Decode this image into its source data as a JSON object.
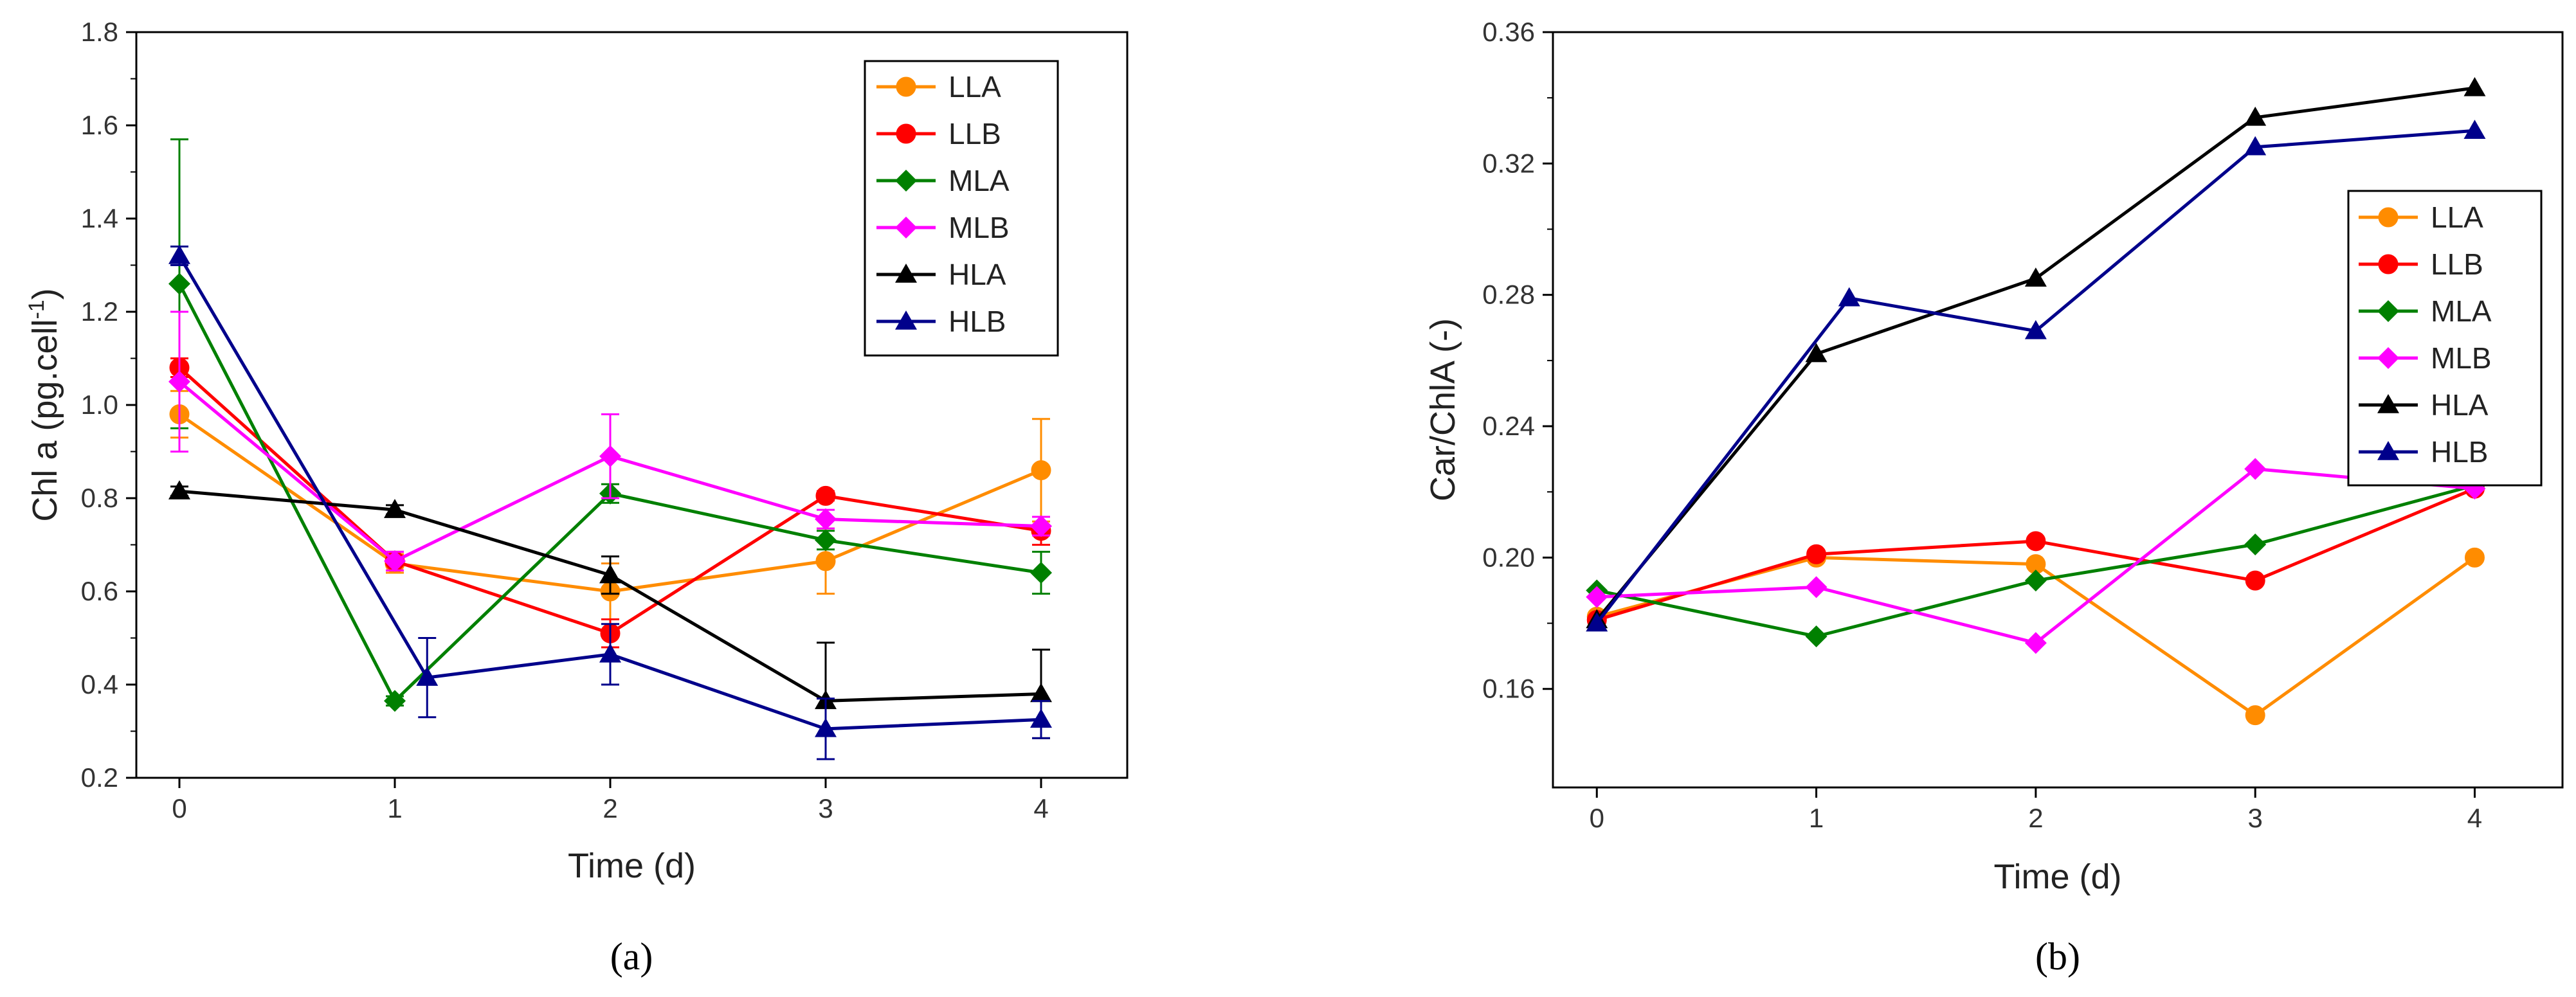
{
  "chart_data": [
    {
      "type": "line",
      "panel": "a",
      "caption": "(a)",
      "xlabel": "Time (d)",
      "ylabel": "Chl a (pg.cell",
      "ylabel_sup": "-1",
      "ylabel_close": ")",
      "xlim": [
        -0.2,
        4.4
      ],
      "ylim": [
        0.2,
        1.8
      ],
      "xticks": [
        0,
        1,
        2,
        3,
        4
      ],
      "xtick_labels": [
        "0",
        "1",
        "2",
        "3",
        "4"
      ],
      "yticks": [
        0.2,
        0.4,
        0.6,
        0.8,
        1.0,
        1.2,
        1.4,
        1.6,
        1.8
      ],
      "ytick_labels": [
        "0.2",
        "0.4",
        "0.6",
        "0.8",
        "1.0",
        "1.2",
        "1.4",
        "1.6",
        "1.8"
      ],
      "legend_position": "top-right",
      "series": [
        {
          "name": "LLA",
          "color": "#ff8c00",
          "marker": "circle",
          "x": [
            0,
            1,
            2,
            3,
            4
          ],
          "y": [
            0.98,
            0.66,
            0.6,
            0.665,
            0.86
          ],
          "err": [
            0.05,
            0.02,
            0.06,
            0.07,
            0.11
          ]
        },
        {
          "name": "LLB",
          "color": "#ff0000",
          "marker": "circle",
          "x": [
            0,
            1,
            2,
            3,
            4
          ],
          "y": [
            1.08,
            0.665,
            0.51,
            0.805,
            0.73
          ],
          "err": [
            0.02,
            0.02,
            0.03,
            0.01,
            0.03
          ]
        },
        {
          "name": "MLA",
          "color": "#008000",
          "marker": "diamond",
          "x": [
            0,
            1,
            2,
            3,
            4
          ],
          "y": [
            1.26,
            0.365,
            0.81,
            0.71,
            0.64
          ],
          "err": [
            0.31,
            0.01,
            0.02,
            0.02,
            0.045
          ]
        },
        {
          "name": "MLB",
          "color": "#ff00ff",
          "marker": "diamond",
          "x": [
            0,
            1,
            2,
            3,
            4
          ],
          "y": [
            1.05,
            0.665,
            0.89,
            0.755,
            0.74
          ],
          "err": [
            0.15,
            0.02,
            0.09,
            0.02,
            0.02
          ]
        },
        {
          "name": "HLA",
          "color": "#000000",
          "marker": "triangle",
          "x": [
            0,
            1,
            2,
            3,
            4
          ],
          "y": [
            0.815,
            0.775,
            0.635,
            0.365,
            0.38
          ],
          "err": [
            0.01,
            0.01,
            0.04,
            0.125,
            0.095
          ]
        },
        {
          "name": "HLB",
          "color": "#00008b",
          "marker": "triangle",
          "x": [
            0,
            1.15,
            2,
            3,
            4
          ],
          "y": [
            1.32,
            0.415,
            0.465,
            0.305,
            0.325
          ],
          "err": [
            0.02,
            0.085,
            0.065,
            0.065,
            0.04
          ]
        }
      ]
    },
    {
      "type": "line",
      "panel": "b",
      "caption": "(b)",
      "xlabel": "Time (d)",
      "ylabel": "Car/ChlA (-)",
      "xlim": [
        -0.2,
        4.4
      ],
      "ylim": [
        0.13,
        0.36
      ],
      "xticks": [
        0,
        1,
        2,
        3,
        4
      ],
      "xtick_labels": [
        "0",
        "1",
        "2",
        "3",
        "4"
      ],
      "yticks": [
        0.16,
        0.2,
        0.24,
        0.28,
        0.32,
        0.36
      ],
      "ytick_labels": [
        "0.16",
        "0.20",
        "0.24",
        "0.28",
        "0.32",
        "0.36"
      ],
      "legend_position": "right",
      "series": [
        {
          "name": "LLA",
          "color": "#ff8c00",
          "marker": "circle",
          "x": [
            0,
            1,
            2,
            3,
            4
          ],
          "y": [
            0.182,
            0.2,
            0.198,
            0.152,
            0.2
          ]
        },
        {
          "name": "LLB",
          "color": "#ff0000",
          "marker": "circle",
          "x": [
            0,
            1,
            2,
            3,
            4
          ],
          "y": [
            0.181,
            0.201,
            0.205,
            0.193,
            0.221
          ]
        },
        {
          "name": "MLA",
          "color": "#008000",
          "marker": "diamond",
          "x": [
            0,
            1,
            2,
            3,
            4
          ],
          "y": [
            0.19,
            0.176,
            0.193,
            0.204,
            0.222
          ]
        },
        {
          "name": "MLB",
          "color": "#ff00ff",
          "marker": "diamond",
          "x": [
            0,
            1,
            2,
            3,
            4
          ],
          "y": [
            0.188,
            0.191,
            0.174,
            0.227,
            0.221
          ]
        },
        {
          "name": "HLA",
          "color": "#000000",
          "marker": "triangle",
          "x": [
            0,
            1,
            2,
            3,
            4
          ],
          "y": [
            0.181,
            0.262,
            0.285,
            0.334,
            0.343
          ]
        },
        {
          "name": "HLB",
          "color": "#00008b",
          "marker": "triangle",
          "x": [
            0,
            1.15,
            2,
            3,
            4
          ],
          "y": [
            0.18,
            0.279,
            0.269,
            0.325,
            0.33
          ]
        }
      ]
    }
  ]
}
